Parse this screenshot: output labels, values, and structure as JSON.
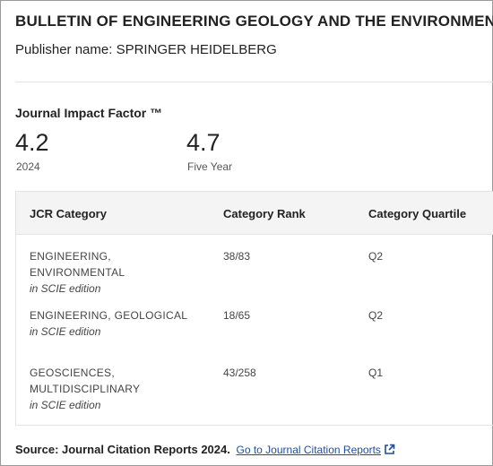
{
  "journal": {
    "title": "BULLETIN OF ENGINEERING GEOLOGY AND THE ENVIRONMENT",
    "publisher_label": "Publisher name:",
    "publisher_name": "SPRINGER HEIDELBERG"
  },
  "impact_factor": {
    "label": "Journal Impact Factor ™",
    "current_value": "4.2",
    "current_year": "2024",
    "five_year_value": "4.7",
    "five_year_label": "Five Year"
  },
  "categories": {
    "headers": [
      "JCR Category",
      "Category Rank",
      "Category Quartile"
    ],
    "rows": [
      {
        "name_lines": [
          "ENGINEERING, ENVIRONMENTAL"
        ],
        "edition": "in SCIE edition",
        "rank": "38/83",
        "quartile": "Q2"
      },
      {
        "name_lines": [
          "ENGINEERING, GEOLOGICAL"
        ],
        "edition": "in SCIE edition",
        "rank": "18/65",
        "quartile": "Q2"
      },
      {
        "name_lines": [
          "GEOSCIENCES,",
          "MULTIDISCIPLINARY"
        ],
        "edition": "in SCIE edition",
        "rank": "43/258",
        "quartile": "Q1"
      }
    ]
  },
  "footer": {
    "source_text": "Source: Journal Citation Reports",
    "source_year": "2024.",
    "link_text": "Go to Journal Citation Reports",
    "link_icon": "external-link-icon",
    "link_color": "#1c4e9e"
  }
}
